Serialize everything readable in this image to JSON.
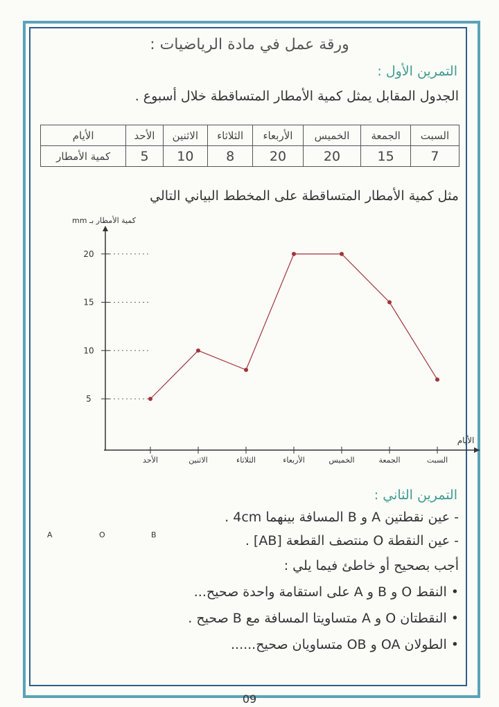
{
  "title": "ورقة عمل في مادة الرياضيات :",
  "exercise1": {
    "heading": "التمرين الأول :",
    "statement": "الجدول المقابل يمثل كمية الأمطار المتساقطة خلال أسبوع .",
    "table": {
      "row_headers": [
        "الأيام",
        "كمية الأمطار"
      ],
      "days": [
        "السبت",
        "الجمعة",
        "الخميس",
        "الأربعاء",
        "الثلاثاء",
        "الاثنين",
        "الأحد"
      ],
      "values": [
        "7",
        "15",
        "20",
        "20",
        "8",
        "10",
        "5"
      ]
    },
    "instruction": "مثل كمية الأمطار المتساقطة على المخطط البياني التالي"
  },
  "chart_data": {
    "type": "line",
    "ylabel": "كمية الأمطار بـ mm",
    "xlabel": "الأيام",
    "categories": [
      "الأحد",
      "الاثنين",
      "الثلاثاء",
      "الأربعاء",
      "الخميس",
      "الجمعة",
      "السبت"
    ],
    "values": [
      5,
      10,
      8,
      20,
      20,
      15,
      7
    ],
    "yticks": [
      "5",
      "10",
      "15",
      "20"
    ],
    "line_color": "#a0353a",
    "grid": false
  },
  "exercise2": {
    "heading": "التمرين الثاني :",
    "lines": [
      "- عين نقطتين A و B المسافة بينهما 4cm .",
      "- عين النقطة O منتصف القطعة [AB] .",
      "أجب بصحيح أو خاطئ فيما يلي :",
      "• النقط O و B و A على استقامة واحدة صحيح...",
      "• النقطتان O و A متساويتا المسافة مع B صحيح .",
      "• الطولان OA و OB متساويان صحيح......"
    ],
    "point_labels": [
      "A",
      "O",
      "B"
    ]
  },
  "page_number": "09",
  "colors": {
    "frame": "#5aa3b8",
    "heading": "#3f9b8f"
  }
}
